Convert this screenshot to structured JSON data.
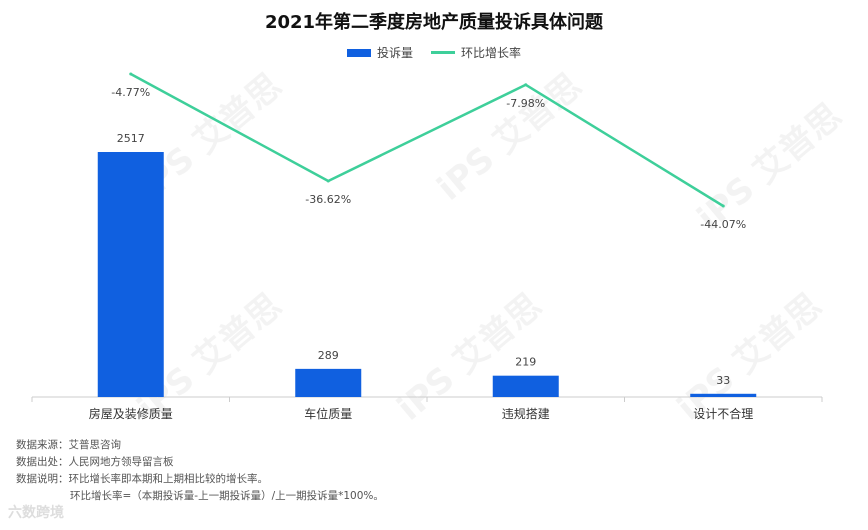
{
  "chart_data": {
    "type": "bar",
    "title": "2021年第二季度房地产质量投诉具体问题",
    "categories": [
      "房屋及装修质量",
      "车位质量",
      "违规搭建",
      "设计不合理"
    ],
    "series": [
      {
        "name": "投诉量",
        "kind": "bar",
        "color": "#1060e0",
        "values": [
          2517,
          289,
          219,
          33
        ],
        "labels": [
          "2517",
          "289",
          "219",
          "33"
        ]
      },
      {
        "name": "环比增长率",
        "kind": "line",
        "color": "#3ecf9a",
        "values": [
          -4.77,
          -36.62,
          -7.98,
          -44.07
        ],
        "labels": [
          "-4.77%",
          "-36.62%",
          "-7.98%",
          "-44.07%"
        ]
      }
    ],
    "grid": false,
    "legend_position": "top-center"
  },
  "notes": {
    "source": "数据来源：艾普思咨询",
    "origin": "数据出处：人民网地方领导留言板",
    "explain": "数据说明：环比增长率即本期和上期相比较的增长率。",
    "formula": "环比增长率=（本期投诉量-上一期投诉量）/上一期投诉量*100%。"
  },
  "logo_text": "六数跨境",
  "watermark_text": "iPS 艾普思"
}
